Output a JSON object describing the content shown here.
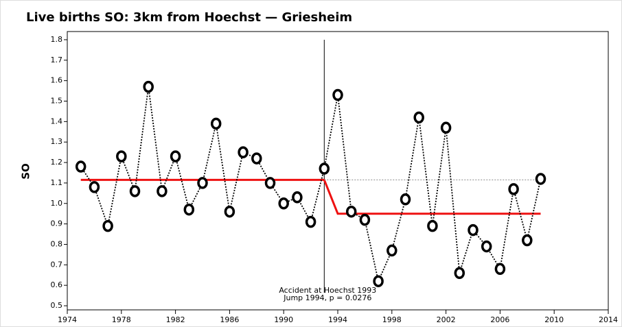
{
  "chart_data": {
    "type": "line",
    "title": "Live births SO: 3km from Hoechst — Griesheim",
    "y_label": "SO",
    "xlim": [
      1974,
      2014
    ],
    "xticks": [
      1974,
      1978,
      1982,
      1986,
      1990,
      1994,
      1998,
      2002,
      2006,
      2010,
      2014
    ],
    "ylim": [
      0.48,
      1.84
    ],
    "yticks": [
      0.5,
      0.6,
      0.7,
      0.8,
      0.9,
      {
        "value": 1.0,
        "label": "1.0"
      },
      1.1,
      1.2,
      1.3,
      1.4,
      1.5,
      1.6,
      1.7,
      1.8
    ],
    "series": [
      {
        "color": "#000000",
        "style": "dotted",
        "markers": true,
        "x": [
          1975,
          1976,
          1977,
          1978,
          1979,
          1980,
          1981,
          1982,
          1983,
          1984,
          1985,
          1986,
          1987,
          1988,
          1989,
          1990,
          1991,
          1992,
          1993,
          1994,
          1995,
          1996,
          1997,
          1998,
          1999,
          2000,
          2001,
          2002,
          2003,
          2004,
          2005,
          2006,
          2007,
          2008,
          2009
        ],
        "values": [
          1.18,
          1.08,
          0.89,
          1.23,
          1.06,
          1.57,
          1.06,
          1.23,
          0.97,
          1.1,
          1.39,
          0.96,
          1.25,
          1.22,
          1.1,
          1.0,
          1.03,
          0.91,
          1.17,
          1.53,
          0.96,
          0.92,
          0.62,
          0.77,
          1.02,
          1.42,
          0.89,
          1.37,
          0.66,
          0.87,
          0.79,
          0.68,
          1.07,
          0.82,
          1.12
        ]
      },
      {
        "color": "#ee1111",
        "style": "solid",
        "markers": false,
        "x": [
          1975,
          1993,
          1994,
          2009
        ],
        "values": [
          1.115,
          1.115,
          0.95,
          0.95
        ]
      },
      {
        "color": "#888888",
        "style": "dotted",
        "markers": false,
        "x": [
          1993,
          2009
        ],
        "values": [
          1.115,
          1.115
        ]
      }
    ],
    "annotation": {
      "x": 1993,
      "lines": [
        "Accident at Hoechst 1993",
        "Jump 1994, p =  0.0276"
      ]
    }
  }
}
